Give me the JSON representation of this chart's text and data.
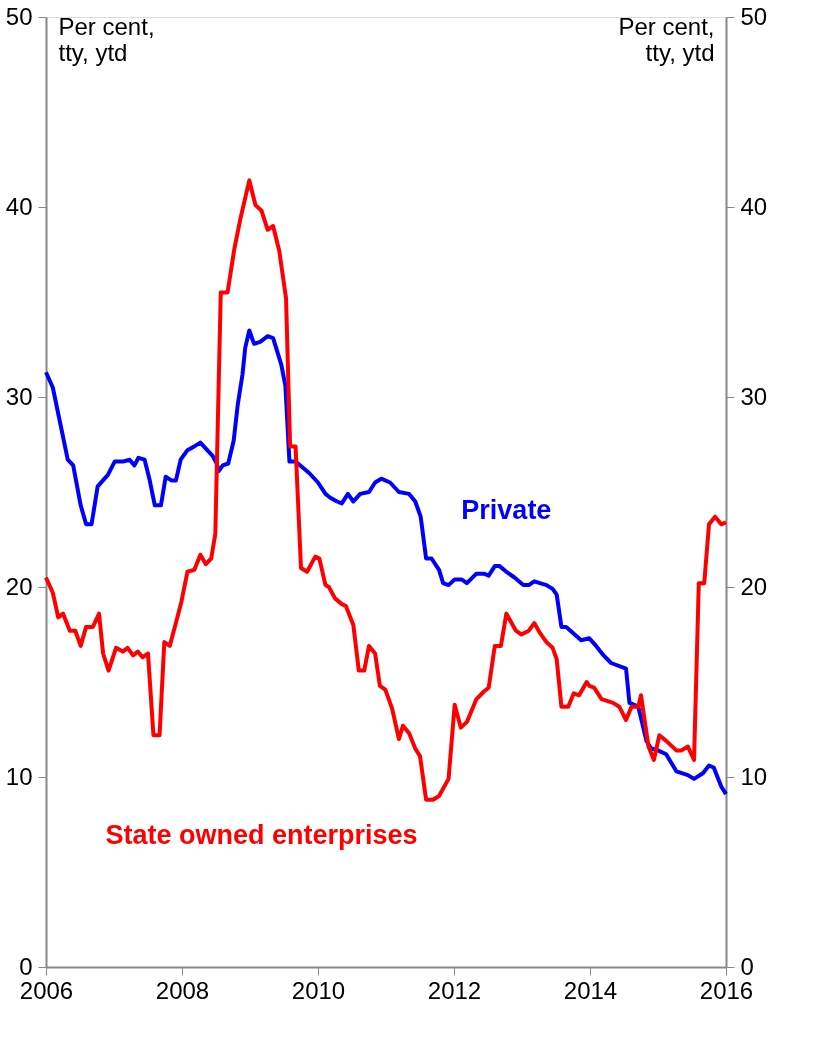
{
  "chart_data": {
    "type": "line",
    "ylabel": "Per cent,\ntty,  ytd",
    "y2label": "Per cent,\ntty,  ytd",
    "xlim": [
      2006,
      2016
    ],
    "xticks": [
      2006,
      2008,
      2010,
      2012,
      2014,
      2016
    ],
    "ylim": [
      0,
      50
    ],
    "yticks": [
      0,
      10,
      20,
      30,
      40,
      50
    ],
    "y2lim": [
      0,
      50
    ],
    "y2ticks": [
      0,
      10,
      20,
      30,
      40,
      50
    ],
    "grid": false,
    "legend": false,
    "line_style": "solid",
    "marker": "none",
    "series": [
      {
        "name": "Private",
        "color": "#0000ff",
        "x": [
          2006.0,
          2006.1,
          2006.32,
          2006.4,
          2006.51,
          2006.59,
          2006.67,
          2006.76,
          2006.91,
          2007.01,
          2007.13,
          2007.23,
          2007.3,
          2007.36,
          2007.45,
          2007.52,
          2007.6,
          2007.69,
          2007.76,
          2007.85,
          2007.91,
          2007.98,
          2008.08,
          2008.18,
          2008.27,
          2008.45,
          2008.51,
          2008.54,
          2008.6,
          2008.68,
          2008.76,
          2008.82,
          2008.89,
          2008.93,
          2008.99,
          2009.06,
          2009.15,
          2009.26,
          2009.34,
          2009.4,
          2009.46,
          2009.52,
          2009.58,
          2009.67,
          2009.77,
          2009.87,
          2010.0,
          2010.11,
          2010.18,
          2010.28,
          2010.35,
          2010.44,
          2010.52,
          2010.62,
          2010.75,
          2010.84,
          2010.93,
          2011.06,
          2011.19,
          2011.34,
          2011.43,
          2011.51,
          2011.59,
          2011.67,
          2011.78,
          2011.84,
          2011.92,
          2012.01,
          2012.11,
          2012.19,
          2012.33,
          2012.44,
          2012.51,
          2012.6,
          2012.67,
          2012.77,
          2012.89,
          2013.02,
          2013.1,
          2013.18,
          2013.36,
          2013.45,
          2013.51,
          2013.58,
          2013.65,
          2013.87,
          2013.99,
          2014.09,
          2014.2,
          2014.31,
          2014.53,
          2014.58,
          2014.71,
          2014.83,
          2014.9,
          2015.0,
          2015.12,
          2015.27,
          2015.44,
          2015.53,
          2015.66,
          2015.75,
          2015.82,
          2015.93,
          2016.0
        ],
        "values": [
          31.3,
          30.5,
          26.7,
          26.4,
          24.3,
          23.3,
          23.3,
          25.3,
          25.9,
          26.6,
          26.6,
          26.7,
          26.4,
          26.8,
          26.7,
          25.7,
          24.3,
          24.3,
          25.8,
          25.6,
          25.6,
          26.7,
          27.2,
          27.4,
          27.6,
          26.9,
          26.5,
          26.1,
          26.4,
          26.5,
          27.7,
          29.6,
          31.2,
          32.6,
          33.5,
          32.8,
          32.9,
          33.2,
          33.1,
          32.4,
          31.7,
          30.6,
          26.6,
          26.6,
          26.3,
          26.0,
          25.5,
          24.9,
          24.7,
          24.5,
          24.4,
          24.9,
          24.5,
          24.9,
          25.0,
          25.5,
          25.7,
          25.5,
          25.0,
          24.9,
          24.5,
          23.7,
          21.5,
          21.5,
          20.9,
          20.2,
          20.1,
          20.4,
          20.4,
          20.2,
          20.7,
          20.7,
          20.6,
          21.1,
          21.1,
          20.8,
          20.5,
          20.1,
          20.1,
          20.3,
          20.1,
          19.9,
          19.6,
          17.9,
          17.9,
          17.2,
          17.3,
          16.9,
          16.4,
          16.0,
          15.7,
          13.9,
          13.7,
          11.9,
          11.5,
          11.4,
          11.2,
          10.3,
          10.1,
          9.9,
          10.2,
          10.6,
          10.5,
          9.5,
          9.1
        ]
      },
      {
        "name": "State owned enterprises",
        "color": "#ff0000",
        "x": [
          2006.0,
          2006.1,
          2006.18,
          2006.25,
          2006.35,
          2006.43,
          2006.51,
          2006.59,
          2006.69,
          2006.78,
          2006.84,
          2006.92,
          2007.03,
          2007.13,
          2007.2,
          2007.28,
          2007.35,
          2007.42,
          2007.5,
          2007.58,
          2007.67,
          2007.74,
          2007.82,
          2007.91,
          2007.99,
          2008.08,
          2008.18,
          2008.27,
          2008.35,
          2008.43,
          2008.49,
          2008.57,
          2008.67,
          2008.77,
          2008.86,
          2008.99,
          2009.08,
          2009.17,
          2009.26,
          2009.34,
          2009.43,
          2009.53,
          2009.59,
          2009.67,
          2009.75,
          2009.84,
          2009.96,
          2010.02,
          2010.11,
          2010.16,
          2010.25,
          2010.35,
          2010.41,
          2010.52,
          2010.6,
          2010.68,
          2010.75,
          2010.84,
          2010.91,
          2010.99,
          2011.09,
          2011.19,
          2011.25,
          2011.34,
          2011.43,
          2011.5,
          2011.59,
          2011.69,
          2011.78,
          2011.92,
          2012.01,
          2012.1,
          2012.19,
          2012.33,
          2012.44,
          2012.51,
          2012.6,
          2012.69,
          2012.77,
          2012.91,
          2012.99,
          2013.1,
          2013.18,
          2013.26,
          2013.36,
          2013.45,
          2013.51,
          2013.58,
          2013.68,
          2013.76,
          2013.84,
          2013.95,
          2013.99,
          2014.06,
          2014.17,
          2014.34,
          2014.43,
          2014.53,
          2014.61,
          2014.71,
          2014.75,
          2014.86,
          2014.94,
          2015.02,
          2015.12,
          2015.27,
          2015.34,
          2015.44,
          2015.53,
          2015.6,
          2015.68,
          2015.75,
          2015.84,
          2015.93,
          2016.0
        ],
        "values": [
          20.5,
          19.7,
          18.4,
          18.6,
          17.7,
          17.7,
          16.9,
          17.9,
          17.9,
          18.6,
          16.5,
          15.6,
          16.8,
          16.6,
          16.8,
          16.4,
          16.6,
          16.3,
          16.5,
          12.2,
          12.2,
          17.1,
          16.9,
          18.1,
          19.2,
          20.8,
          20.9,
          21.7,
          21.2,
          21.5,
          22.8,
          35.5,
          35.5,
          37.8,
          39.4,
          41.4,
          40.1,
          39.8,
          38.8,
          39.0,
          37.7,
          35.2,
          27.4,
          27.4,
          21.0,
          20.8,
          21.6,
          21.5,
          20.1,
          20.0,
          19.4,
          19.1,
          19.0,
          18.0,
          15.6,
          15.6,
          16.9,
          16.5,
          14.8,
          14.6,
          13.6,
          12.0,
          12.7,
          12.3,
          11.5,
          11.1,
          8.8,
          8.8,
          9.0,
          9.9,
          13.8,
          12.6,
          12.9,
          14.1,
          14.5,
          14.7,
          16.9,
          16.9,
          18.6,
          17.7,
          17.5,
          17.7,
          18.1,
          17.6,
          17.1,
          16.8,
          16.2,
          13.7,
          13.7,
          14.4,
          14.3,
          15.0,
          14.8,
          14.7,
          14.1,
          13.9,
          13.7,
          13.0,
          13.7,
          13.7,
          14.3,
          11.6,
          10.9,
          12.2,
          11.9,
          11.4,
          11.4,
          11.6,
          10.9,
          20.2,
          20.2,
          23.3,
          23.7,
          23.3,
          23.4
        ]
      }
    ]
  }
}
